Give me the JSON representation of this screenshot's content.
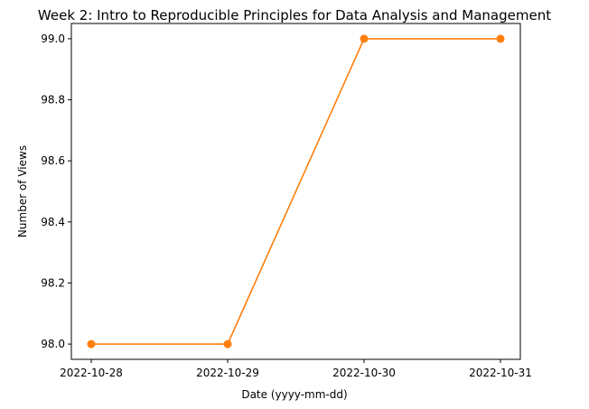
{
  "chart_data": {
    "type": "line",
    "title": "Week 2: Intro to Reproducible Principles for Data Analysis and Management",
    "xlabel": "Date (yyyy-mm-dd)",
    "ylabel": "Number of Views",
    "x": [
      "2022-10-28",
      "2022-10-29",
      "2022-10-30",
      "2022-10-31"
    ],
    "series": [
      {
        "values": [
          98.0,
          98.0,
          99.0,
          99.0
        ],
        "color": "#ff7f0e",
        "line_color": "#ff7f0e",
        "marker": "circle"
      }
    ],
    "ylim": [
      97.95,
      99.05
    ],
    "yticks": [
      98.0,
      98.2,
      98.4,
      98.6,
      98.8,
      99.0
    ],
    "ytick_labels": [
      "98.0",
      "98.2",
      "98.4",
      "98.6",
      "98.8",
      "99.0"
    ],
    "grid": false,
    "legend": "none"
  }
}
